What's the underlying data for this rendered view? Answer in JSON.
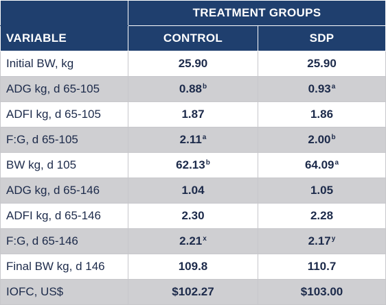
{
  "header": {
    "group_label": "TREATMENT GROUPS",
    "variable_label": "VARIABLE",
    "control_label": "CONTROL",
    "sdp_label": "SDP"
  },
  "rows": [
    {
      "label": "Initial BW, kg",
      "control": "25.90",
      "control_sup": "",
      "sdp": "25.90",
      "sdp_sup": ""
    },
    {
      "label": "ADG kg, d 65-105",
      "control": "0.88",
      "control_sup": "b",
      "sdp": "0.93",
      "sdp_sup": "a"
    },
    {
      "label": "ADFI kg, d 65-105",
      "control": "1.87",
      "control_sup": "",
      "sdp": "1.86",
      "sdp_sup": ""
    },
    {
      "label": "F:G, d 65-105",
      "control": "2.11",
      "control_sup": "a",
      "sdp": "2.00",
      "sdp_sup": "b"
    },
    {
      "label": "BW kg, d 105",
      "control": "62.13",
      "control_sup": "b",
      "sdp": "64.09",
      "sdp_sup": "a"
    },
    {
      "label": "ADG kg, d 65-146",
      "control": "1.04",
      "control_sup": "",
      "sdp": "1.05",
      "sdp_sup": ""
    },
    {
      "label": "ADFI kg, d 65-146",
      "control": "2.30",
      "control_sup": "",
      "sdp": "2.28",
      "sdp_sup": ""
    },
    {
      "label": "F:G, d 65-146",
      "control": "2.21",
      "control_sup": "x",
      "sdp": "2.17",
      "sdp_sup": "y"
    },
    {
      "label": "Final BW kg, d 146",
      "control": "109.8",
      "control_sup": "",
      "sdp": "110.7",
      "sdp_sup": ""
    },
    {
      "label": "IOFC, US$",
      "control": "$102.27",
      "control_sup": "",
      "sdp": "$103.00",
      "sdp_sup": ""
    }
  ],
  "colors": {
    "header_bg": "#1f3f6e",
    "header_text": "#ffffff",
    "shaded_row": "#cfcfd2",
    "body_text": "#1c2a4a"
  }
}
